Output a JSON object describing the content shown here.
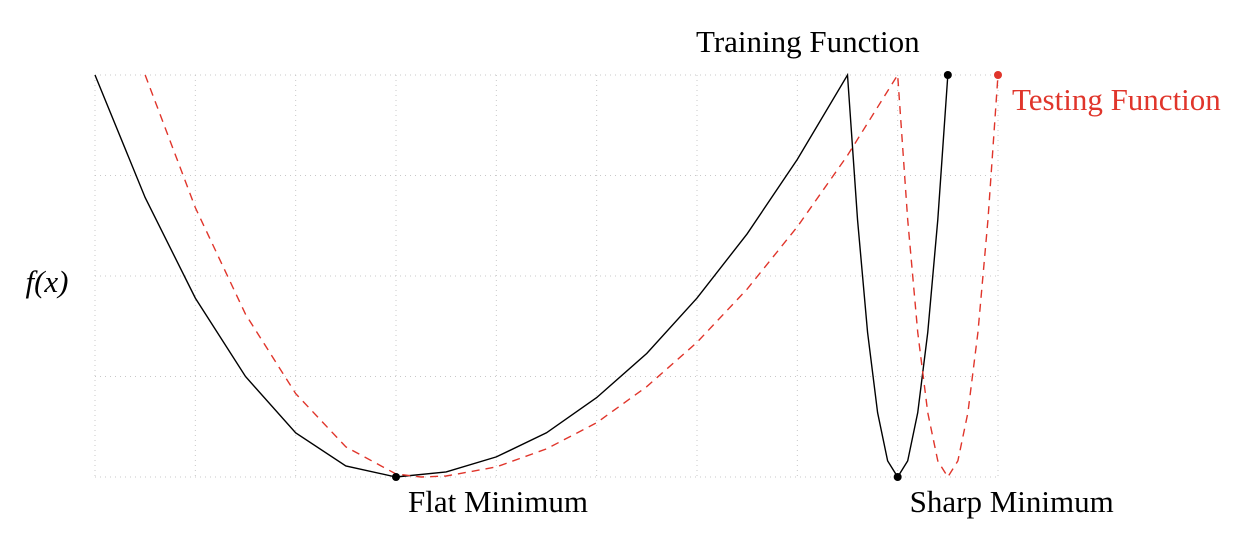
{
  "chart_data": {
    "type": "line",
    "y_label": "f(x)",
    "xlim": [
      0,
      9
    ],
    "ylim": [
      0,
      4
    ],
    "xticks": [
      0,
      1,
      2,
      3,
      4,
      5,
      6,
      7,
      8,
      9
    ],
    "yticks": [
      0,
      1,
      2,
      3,
      4
    ],
    "grid": true,
    "series": [
      {
        "name": "Training Function",
        "color": "#000000",
        "dash": false,
        "x": [
          0,
          0.5,
          1,
          1.5,
          2,
          2.5,
          3,
          3.5,
          4,
          4.5,
          5,
          5.5,
          6,
          6.5,
          7,
          7.5,
          7.6,
          7.7,
          7.8,
          7.9,
          8,
          8.1,
          8.2,
          8.3,
          8.4,
          8.5
        ],
        "values": [
          4,
          2.78,
          1.78,
          1.0,
          0.44,
          0.11,
          0,
          0.05,
          0.2,
          0.44,
          0.79,
          1.23,
          1.78,
          2.42,
          3.16,
          4,
          2.56,
          1.44,
          0.64,
          0.16,
          0,
          0.16,
          0.64,
          1.44,
          2.56,
          4
        ]
      },
      {
        "name": "Testing Function",
        "color": "#e0352b",
        "dash": true,
        "x": [
          0.5,
          1,
          1.5,
          2,
          2.5,
          3,
          3.25,
          3.5,
          4,
          4.5,
          5,
          5.5,
          6,
          6.5,
          7,
          7.5,
          8,
          8.1,
          8.2,
          8.3,
          8.4,
          8.5,
          8.6,
          8.7,
          8.8,
          8.9,
          9
        ],
        "values": [
          4,
          2.68,
          1.62,
          0.83,
          0.3,
          0.03,
          0,
          0.01,
          0.1,
          0.28,
          0.54,
          0.9,
          1.34,
          1.87,
          2.49,
          3.2,
          4,
          2.56,
          1.44,
          0.64,
          0.16,
          0,
          0.16,
          0.64,
          1.44,
          2.56,
          4
        ]
      }
    ],
    "annotations": [
      {
        "text": "Flat Minimum",
        "x": 3,
        "y": 0
      },
      {
        "text": "Sharp Minimum",
        "x": 8,
        "y": 0
      }
    ]
  }
}
